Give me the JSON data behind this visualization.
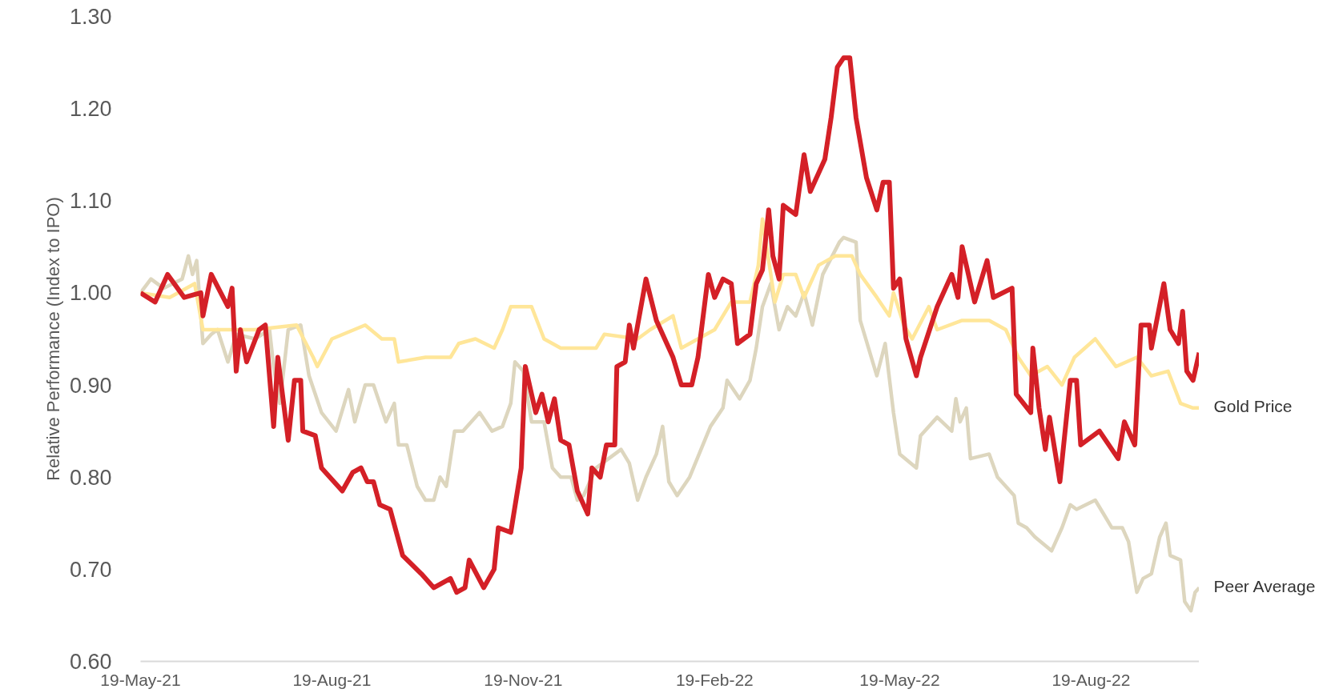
{
  "chart_data": {
    "type": "line",
    "ylabel": "Relative Performance (Index to IPO)",
    "xlim": [
      "2021-05-19",
      "2022-10-10"
    ],
    "ylim": [
      0.6,
      1.3
    ],
    "yticks": [
      {
        "value": 0.6,
        "label": "0.60"
      },
      {
        "value": 0.7,
        "label": "0.70"
      },
      {
        "value": 0.8,
        "label": "0.80"
      },
      {
        "value": 0.9,
        "label": "0.90"
      },
      {
        "value": 1.0,
        "label": "1.00"
      },
      {
        "value": 1.1,
        "label": "1.10"
      },
      {
        "value": 1.2,
        "label": "1.20"
      },
      {
        "value": 1.3,
        "label": "1.30"
      }
    ],
    "xticks": [
      {
        "value": "2021-05-19",
        "label": "19-May-21"
      },
      {
        "value": "2021-08-19",
        "label": "19-Aug-21"
      },
      {
        "value": "2021-11-19",
        "label": "19-Nov-21"
      },
      {
        "value": "2022-02-19",
        "label": "19-Feb-22"
      },
      {
        "value": "2022-05-19",
        "label": "19-May-22"
      },
      {
        "value": "2022-08-19",
        "label": "19-Aug-22"
      }
    ],
    "grid": false,
    "legend": false,
    "marker": "none",
    "line_style": "solid",
    "series": [
      {
        "name": "Peer Average",
        "color": "#ddd6be",
        "x": [
          "2021-05-19",
          "2021-05-24",
          "2021-05-30",
          "2021-06-08",
          "2021-06-11",
          "2021-06-13",
          "2021-06-15",
          "2021-06-18",
          "2021-06-22",
          "2021-06-25",
          "2021-06-30",
          "2021-07-04",
          "2021-07-13",
          "2021-07-20",
          "2021-07-22",
          "2021-07-25",
          "2021-07-29",
          "2021-08-04",
          "2021-08-08",
          "2021-08-14",
          "2021-08-21",
          "2021-08-27",
          "2021-08-30",
          "2021-09-04",
          "2021-09-08",
          "2021-09-14",
          "2021-09-18",
          "2021-09-20",
          "2021-09-24",
          "2021-09-29",
          "2021-10-03",
          "2021-10-07",
          "2021-10-10",
          "2021-10-13",
          "2021-10-17",
          "2021-10-21",
          "2021-10-29",
          "2021-11-04",
          "2021-11-09",
          "2021-11-13",
          "2021-11-15",
          "2021-11-19",
          "2021-11-23",
          "2021-11-29",
          "2021-12-03",
          "2021-12-07",
          "2021-12-12",
          "2021-12-15",
          "2021-12-18",
          "2021-12-24",
          "2022-01-05",
          "2022-01-09",
          "2022-01-13",
          "2022-01-17",
          "2022-01-22",
          "2022-01-25",
          "2022-01-28",
          "2022-02-01",
          "2022-02-07",
          "2022-02-17",
          "2022-02-23",
          "2022-02-25",
          "2022-03-03",
          "2022-03-08",
          "2022-03-11",
          "2022-03-14",
          "2022-03-18",
          "2022-03-22",
          "2022-03-26",
          "2022-03-30",
          "2022-04-03",
          "2022-04-07",
          "2022-04-12",
          "2022-04-20",
          "2022-04-22",
          "2022-04-28",
          "2022-04-30",
          "2022-05-08",
          "2022-05-12",
          "2022-05-16",
          "2022-05-19",
          "2022-05-27",
          "2022-05-29",
          "2022-06-06",
          "2022-06-13",
          "2022-06-15",
          "2022-06-17",
          "2022-06-20",
          "2022-06-22",
          "2022-07-01",
          "2022-07-05",
          "2022-07-13",
          "2022-07-15",
          "2022-07-19",
          "2022-07-23",
          "2022-07-31",
          "2022-08-05",
          "2022-08-09",
          "2022-08-12",
          "2022-08-21",
          "2022-08-25",
          "2022-08-29",
          "2022-09-03",
          "2022-09-06",
          "2022-09-10",
          "2022-09-13",
          "2022-09-17",
          "2022-09-21",
          "2022-09-24",
          "2022-09-26",
          "2022-10-01",
          "2022-10-03",
          "2022-10-06",
          "2022-10-08",
          "2022-10-10"
        ],
        "values": [
          1.0,
          1.015,
          1.005,
          1.015,
          1.04,
          1.02,
          1.035,
          0.945,
          0.955,
          0.96,
          0.925,
          0.955,
          0.95,
          0.96,
          0.92,
          0.88,
          0.96,
          0.965,
          0.91,
          0.87,
          0.85,
          0.895,
          0.86,
          0.9,
          0.9,
          0.86,
          0.88,
          0.835,
          0.835,
          0.79,
          0.775,
          0.775,
          0.8,
          0.79,
          0.85,
          0.85,
          0.87,
          0.85,
          0.855,
          0.88,
          0.925,
          0.915,
          0.86,
          0.86,
          0.81,
          0.8,
          0.8,
          0.775,
          0.78,
          0.81,
          0.83,
          0.815,
          0.775,
          0.8,
          0.825,
          0.855,
          0.795,
          0.78,
          0.8,
          0.855,
          0.875,
          0.905,
          0.885,
          0.905,
          0.94,
          0.985,
          1.01,
          0.96,
          0.985,
          0.975,
          1.0,
          0.965,
          1.02,
          1.055,
          1.06,
          1.055,
          0.97,
          0.91,
          0.945,
          0.87,
          0.825,
          0.81,
          0.845,
          0.865,
          0.85,
          0.885,
          0.86,
          0.875,
          0.82,
          0.825,
          0.8,
          0.78,
          0.75,
          0.745,
          0.735,
          0.72,
          0.745,
          0.77,
          0.765,
          0.775,
          0.76,
          0.745,
          0.745,
          0.73,
          0.675,
          0.69,
          0.695,
          0.735,
          0.75,
          0.715,
          0.71,
          0.665,
          0.655,
          0.675,
          0.68
        ]
      },
      {
        "name": "Gold Price",
        "color": "#ffe699",
        "x": [
          "2021-05-19",
          "2021-06-02",
          "2021-06-14",
          "2021-06-18",
          "2021-07-13",
          "2021-08-02",
          "2021-08-10",
          "2021-08-12",
          "2021-08-19",
          "2021-09-04",
          "2021-09-12",
          "2021-09-18",
          "2021-09-20",
          "2021-10-03",
          "2021-10-15",
          "2021-10-19",
          "2021-10-27",
          "2021-11-05",
          "2021-11-09",
          "2021-11-13",
          "2021-11-23",
          "2021-11-29",
          "2021-12-07",
          "2021-12-24",
          "2021-12-28",
          "2022-01-13",
          "2022-01-19",
          "2022-01-30",
          "2022-02-03",
          "2022-02-11",
          "2022-02-19",
          "2022-02-27",
          "2022-03-08",
          "2022-03-12",
          "2022-03-14",
          "2022-03-20",
          "2022-03-24",
          "2022-03-30",
          "2022-04-03",
          "2022-04-10",
          "2022-04-18",
          "2022-04-26",
          "2022-04-30",
          "2022-05-08",
          "2022-05-14",
          "2022-05-16",
          "2022-05-21",
          "2022-05-25",
          "2022-06-02",
          "2022-06-06",
          "2022-06-18",
          "2022-07-01",
          "2022-07-09",
          "2022-07-15",
          "2022-07-21",
          "2022-07-29",
          "2022-08-05",
          "2022-08-11",
          "2022-08-21",
          "2022-08-31",
          "2022-09-10",
          "2022-09-17",
          "2022-09-25",
          "2022-10-01",
          "2022-10-07",
          "2022-10-10"
        ],
        "values": [
          1.0,
          0.995,
          1.01,
          0.96,
          0.96,
          0.965,
          0.93,
          0.92,
          0.95,
          0.965,
          0.95,
          0.95,
          0.925,
          0.93,
          0.93,
          0.945,
          0.95,
          0.94,
          0.96,
          0.985,
          0.985,
          0.95,
          0.94,
          0.94,
          0.955,
          0.95,
          0.96,
          0.975,
          0.94,
          0.95,
          0.96,
          0.99,
          0.99,
          1.03,
          1.08,
          0.99,
          1.02,
          1.02,
          0.995,
          1.03,
          1.04,
          1.04,
          1.02,
          0.995,
          0.975,
          1.0,
          0.965,
          0.95,
          0.985,
          0.96,
          0.97,
          0.97,
          0.96,
          0.93,
          0.91,
          0.92,
          0.9,
          0.93,
          0.95,
          0.92,
          0.93,
          0.91,
          0.915,
          0.88,
          0.875,
          0.875
        ]
      },
      {
        "color": "#d42027",
        "x": [
          "2021-05-19",
          "2021-05-26",
          "2021-06-01",
          "2021-06-09",
          "2021-06-17",
          "2021-06-18",
          "2021-06-22",
          "2021-06-30",
          "2021-07-02",
          "2021-07-04",
          "2021-07-06",
          "2021-07-09",
          "2021-07-15",
          "2021-07-18",
          "2021-07-22",
          "2021-07-24",
          "2021-07-29",
          "2021-08-01",
          "2021-08-04",
          "2021-08-05",
          "2021-08-11",
          "2021-08-14",
          "2021-08-24",
          "2021-08-29",
          "2021-09-02",
          "2021-09-05",
          "2021-09-08",
          "2021-09-11",
          "2021-09-16",
          "2021-09-22",
          "2021-10-01",
          "2021-10-07",
          "2021-10-15",
          "2021-10-18",
          "2021-10-22",
          "2021-10-24",
          "2021-10-31",
          "2021-11-05",
          "2021-11-07",
          "2021-11-13",
          "2021-11-18",
          "2021-11-20",
          "2021-11-25",
          "2021-11-28",
          "2021-12-01",
          "2021-12-04",
          "2021-12-07",
          "2021-12-11",
          "2021-12-15",
          "2021-12-20",
          "2021-12-22",
          "2021-12-26",
          "2021-12-29",
          "2022-01-02",
          "2022-01-03",
          "2022-01-07",
          "2022-01-09",
          "2022-01-11",
          "2022-01-17",
          "2022-01-22",
          "2022-01-30",
          "2022-02-03",
          "2022-02-08",
          "2022-02-11",
          "2022-02-16",
          "2022-02-19",
          "2022-02-23",
          "2022-02-27",
          "2022-03-02",
          "2022-03-08",
          "2022-03-11",
          "2022-03-14",
          "2022-03-17",
          "2022-03-19",
          "2022-03-22",
          "2022-03-24",
          "2022-03-30",
          "2022-04-03",
          "2022-04-06",
          "2022-04-13",
          "2022-04-16",
          "2022-04-19",
          "2022-04-22",
          "2022-04-25",
          "2022-04-28",
          "2022-05-03",
          "2022-05-08",
          "2022-05-11",
          "2022-05-14",
          "2022-05-16",
          "2022-05-19",
          "2022-05-22",
          "2022-05-27",
          "2022-05-29",
          "2022-06-06",
          "2022-06-13",
          "2022-06-16",
          "2022-06-18",
          "2022-06-24",
          "2022-06-30",
          "2022-07-03",
          "2022-07-12",
          "2022-07-14",
          "2022-07-21",
          "2022-07-22",
          "2022-07-25",
          "2022-07-28",
          "2022-07-30",
          "2022-08-04",
          "2022-08-09",
          "2022-08-12",
          "2022-08-14",
          "2022-08-23",
          "2022-09-01",
          "2022-09-04",
          "2022-09-09",
          "2022-09-12",
          "2022-09-16",
          "2022-09-17",
          "2022-09-23",
          "2022-09-26",
          "2022-09-30",
          "2022-10-02",
          "2022-10-04",
          "2022-10-07",
          "2022-10-10"
        ],
        "values": [
          1.0,
          0.99,
          1.02,
          0.995,
          1.0,
          0.975,
          1.02,
          0.985,
          1.005,
          0.915,
          0.96,
          0.925,
          0.96,
          0.965,
          0.855,
          0.93,
          0.84,
          0.905,
          0.905,
          0.85,
          0.845,
          0.81,
          0.785,
          0.805,
          0.81,
          0.795,
          0.795,
          0.77,
          0.765,
          0.715,
          0.695,
          0.68,
          0.69,
          0.675,
          0.68,
          0.71,
          0.68,
          0.7,
          0.745,
          0.74,
          0.81,
          0.92,
          0.87,
          0.89,
          0.86,
          0.885,
          0.84,
          0.835,
          0.785,
          0.76,
          0.81,
          0.8,
          0.835,
          0.835,
          0.92,
          0.925,
          0.965,
          0.94,
          1.015,
          0.97,
          0.93,
          0.9,
          0.9,
          0.93,
          1.02,
          0.995,
          1.015,
          1.01,
          0.945,
          0.955,
          1.01,
          1.025,
          1.09,
          1.04,
          1.015,
          1.095,
          1.085,
          1.15,
          1.11,
          1.145,
          1.19,
          1.245,
          1.255,
          1.255,
          1.19,
          1.125,
          1.09,
          1.12,
          1.12,
          1.005,
          1.015,
          0.95,
          0.91,
          0.93,
          0.985,
          1.02,
          0.995,
          1.05,
          0.99,
          1.035,
          0.995,
          1.005,
          0.89,
          0.87,
          0.94,
          0.875,
          0.83,
          0.865,
          0.795,
          0.905,
          0.905,
          0.835,
          0.85,
          0.82,
          0.86,
          0.835,
          0.965,
          0.965,
          0.94,
          1.01,
          0.96,
          0.945,
          0.98,
          0.915,
          0.905,
          0.935
        ]
      }
    ]
  }
}
